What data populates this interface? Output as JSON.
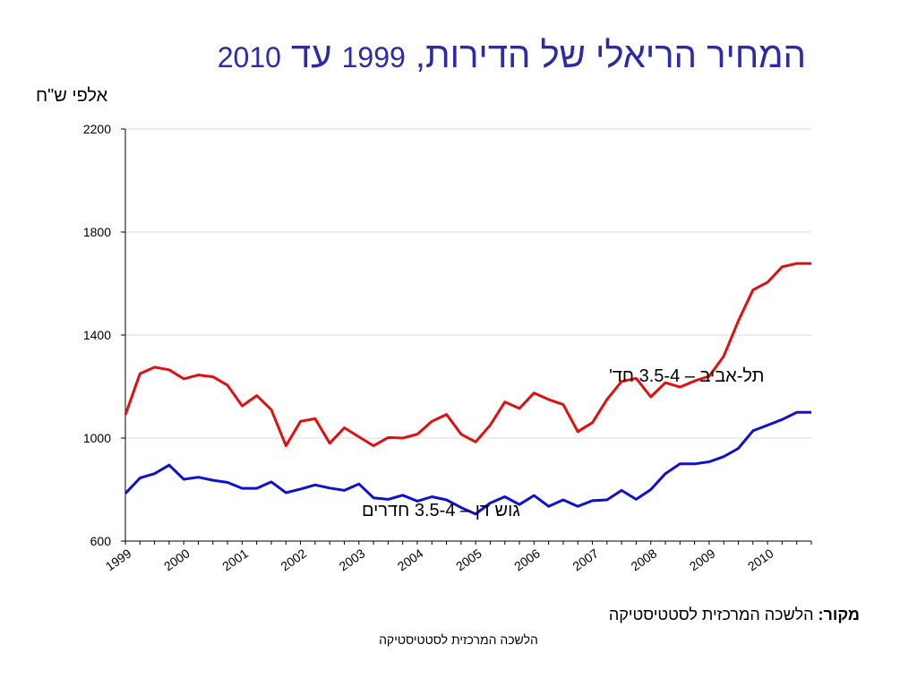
{
  "header": {
    "title_part1": "המחיר הריאלי של הדירות, ",
    "title_year_from": "1999",
    "title_word_to": " עד ",
    "title_year_to": "2010"
  },
  "unit_label": "אלפי ש\"ח",
  "source": {
    "label": "מקור:",
    "text": " הלשכה המרכזית לסטטיסטיקה"
  },
  "footer": "הלשכה המרכזית לסטטיסטיקה",
  "chart_data": {
    "type": "line",
    "title": "המחיר הריאלי של הדירות, 1999 עד 2010",
    "ylabel": "אלפי ש\"ח",
    "ylim": [
      600,
      2200
    ],
    "yticks": [
      600,
      1000,
      1400,
      1800,
      2200
    ],
    "xlim": [
      1999,
      2010.75
    ],
    "year_labels": [
      "1999",
      "2000",
      "2001",
      "2002",
      "2003",
      "2004",
      "2005",
      "2006",
      "2007",
      "2008",
      "2009",
      "2010"
    ],
    "grid": true,
    "x": [
      1999.0,
      1999.25,
      1999.5,
      1999.75,
      2000.0,
      2000.25,
      2000.5,
      2000.75,
      2001.0,
      2001.25,
      2001.5,
      2001.75,
      2002.0,
      2002.25,
      2002.5,
      2002.75,
      2003.0,
      2003.25,
      2003.5,
      2003.75,
      2004.0,
      2004.25,
      2004.5,
      2004.75,
      2005.0,
      2005.25,
      2005.5,
      2005.75,
      2006.0,
      2006.25,
      2006.5,
      2006.75,
      2007.0,
      2007.25,
      2007.5,
      2007.75,
      2008.0,
      2008.25,
      2008.5,
      2008.75,
      2009.0,
      2009.25,
      2009.5,
      2009.75,
      2010.0,
      2010.25,
      2010.5,
      2010.75
    ],
    "series": [
      {
        "name": "תל-אביב – 3.5-4 חד'",
        "color": "#e01010",
        "values": [
          1090,
          1250,
          1275,
          1265,
          1230,
          1245,
          1238,
          1205,
          1125,
          1165,
          1110,
          970,
          1065,
          1075,
          980,
          1040,
          1005,
          970,
          1002,
          1000,
          1015,
          1065,
          1092,
          1015,
          985,
          1050,
          1140,
          1115,
          1175,
          1150,
          1130,
          1025,
          1060,
          1150,
          1220,
          1232,
          1160,
          1215,
          1198,
          1222,
          1240,
          1318,
          1455,
          1575,
          1605,
          1665,
          1678,
          1678
        ]
      },
      {
        "name": "גוש דן – 3.5-4 חדרים",
        "color": "#1010d0",
        "values": [
          785,
          845,
          862,
          895,
          840,
          848,
          836,
          828,
          805,
          805,
          830,
          788,
          802,
          818,
          806,
          797,
          822,
          768,
          762,
          778,
          755,
          772,
          760,
          730,
          705,
          748,
          772,
          742,
          777,
          735,
          760,
          735,
          757,
          760,
          797,
          762,
          800,
          862,
          900,
          900,
          908,
          928,
          960,
          1028,
          1050,
          1072,
          1100,
          1100
        ]
      }
    ]
  }
}
